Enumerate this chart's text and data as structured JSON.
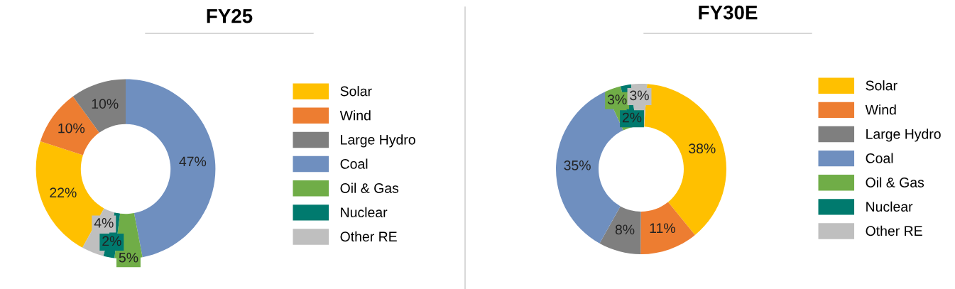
{
  "chart_data": [
    {
      "type": "donut",
      "title": "FY25",
      "categories": [
        "Solar",
        "Wind",
        "Large Hydro",
        "Coal",
        "Oil & Gas",
        "Nuclear",
        "Other RE"
      ],
      "values": [
        22,
        10,
        10,
        47,
        5,
        2,
        4
      ],
      "value_labels": [
        "22%",
        "10%",
        "10%",
        "47%",
        "5%",
        "2%",
        "4%"
      ],
      "colors": [
        "#ffc000",
        "#ed7d31",
        "#7f7f7f",
        "#6f8fbf",
        "#70ad47",
        "#007a6e",
        "#bfbfbf"
      ],
      "legend": "right"
    },
    {
      "type": "donut",
      "title": "FY30E",
      "categories": [
        "Solar",
        "Wind",
        "Large Hydro",
        "Coal",
        "Oil & Gas",
        "Nuclear",
        "Other RE"
      ],
      "values": [
        38,
        11,
        8,
        35,
        3,
        2,
        3
      ],
      "value_labels": [
        "38%",
        "11%",
        "8%",
        "35%",
        "3%",
        "2%",
        "3%"
      ],
      "colors": [
        "#ffc000",
        "#ed7d31",
        "#7f7f7f",
        "#6f8fbf",
        "#70ad47",
        "#007a6e",
        "#bfbfbf"
      ],
      "legend": "right"
    }
  ]
}
